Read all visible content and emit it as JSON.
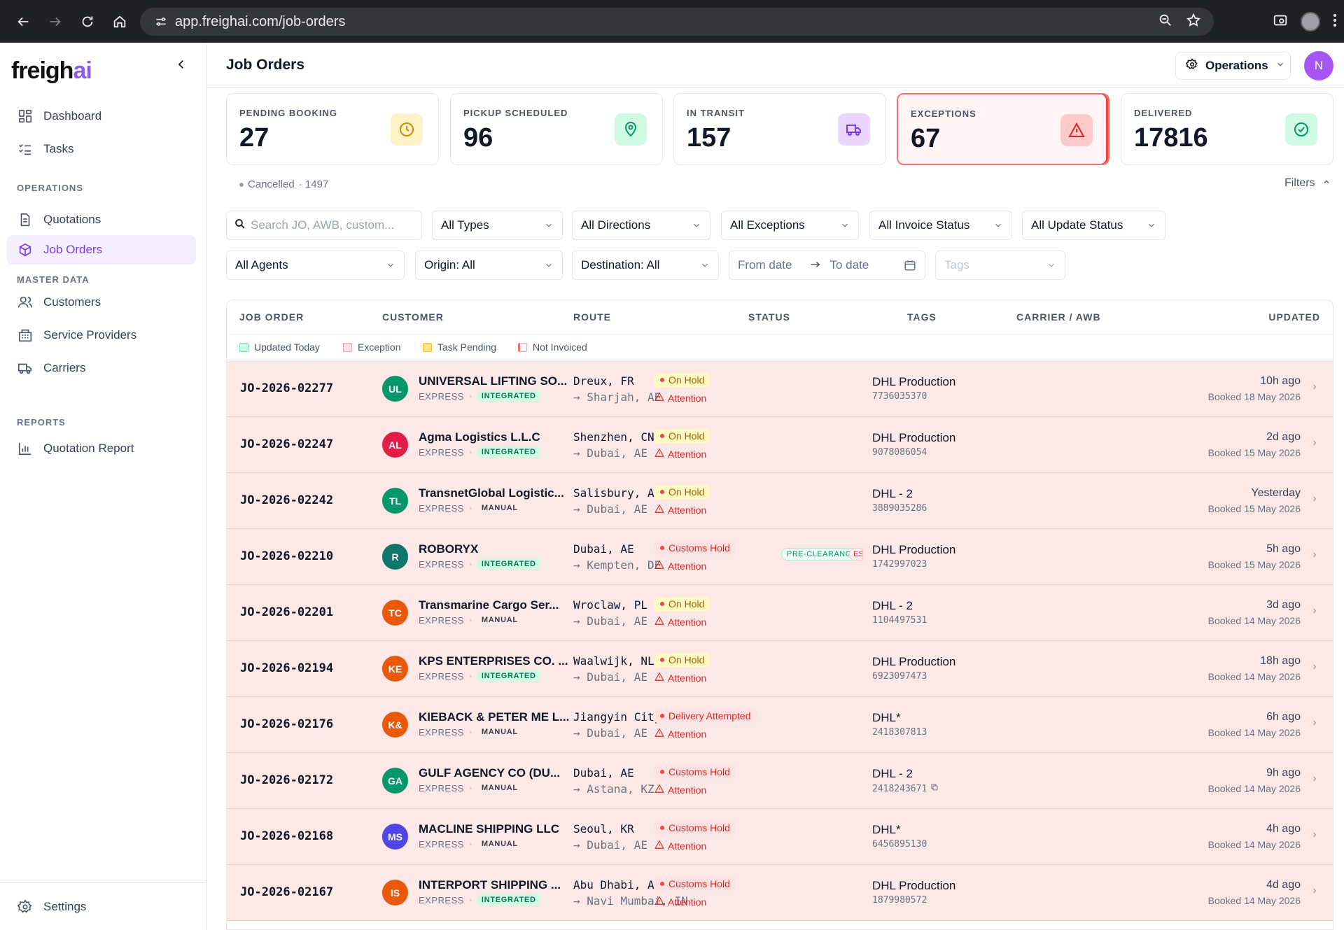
{
  "browser": {
    "url": "app.freighai.com/job-orders"
  },
  "brand": {
    "name_main": "freigh",
    "name_accent": "ai"
  },
  "sidebar": {
    "items_top": [
      {
        "label": "Dashboard",
        "icon": "dashboard-icon"
      },
      {
        "label": "Tasks",
        "icon": "tasks-icon"
      }
    ],
    "sections": [
      {
        "title": "OPERATIONS",
        "items": [
          {
            "label": "Quotations",
            "icon": "document-icon"
          },
          {
            "label": "Job Orders",
            "icon": "box-icon",
            "active": true
          }
        ]
      },
      {
        "title": "MASTER DATA",
        "items": [
          {
            "label": "Customers",
            "icon": "users-icon"
          },
          {
            "label": "Service Providers",
            "icon": "building-icon"
          },
          {
            "label": "Carriers",
            "icon": "truck-icon"
          }
        ]
      },
      {
        "title": "REPORTS",
        "items": [
          {
            "label": "Quotation Report",
            "icon": "bar-chart-icon"
          }
        ]
      }
    ],
    "settings_label": "Settings"
  },
  "header": {
    "title": "Job Orders",
    "workspace": "Operations",
    "user_initial": "N"
  },
  "stats": [
    {
      "label": "PENDING BOOKING",
      "value": "27",
      "color": "#eab308"
    },
    {
      "label": "PICKUP SCHEDULED",
      "value": "96",
      "color": "#10b981"
    },
    {
      "label": "IN TRANSIT",
      "value": "157",
      "color": "#8b5cf6"
    },
    {
      "label": "EXCEPTIONS",
      "value": "67",
      "color": "#ef4444"
    },
    {
      "label": "DELIVERED",
      "value": "17816",
      "color": "#10b981"
    }
  ],
  "cancelled": {
    "label": "Cancelled",
    "count": "· 1497"
  },
  "filters_toggle": "Filters",
  "filters": {
    "search_placeholder": "Search JO, AWB, custom...",
    "types": "All Types",
    "directions": "All Directions",
    "exceptions": "All Exceptions",
    "invoice": "All Invoice Status",
    "update": "All Update Status",
    "agents": "All Agents",
    "origin": "Origin: All",
    "destination": "Destination: All",
    "from_date": "From date",
    "to_date": "To date",
    "tags": "Tags"
  },
  "table": {
    "columns": [
      "JOB ORDER",
      "CUSTOMER",
      "ROUTE",
      "STATUS",
      "TAGS",
      "CARRIER / AWB",
      "UPDATED"
    ],
    "legend": [
      {
        "label": "Updated Today",
        "color": "#a7f3d0"
      },
      {
        "label": "Exception",
        "color": "#fecaca"
      },
      {
        "label": "Task Pending",
        "color": "#fcd34d"
      },
      {
        "label": "Not Invoiced",
        "color": "#fecaca"
      }
    ],
    "rows": [
      {
        "jo": "JO-2026-02277",
        "initials": "UL",
        "avatar_color": "#059669",
        "customer": "UNIVERSAL LIFTING SO...",
        "service": "EXPRESS",
        "mode": "INTEGRATED",
        "from": "Dreux, FR",
        "to": "→ Sharjah, AE",
        "status": "On Hold",
        "status_kind": "hold",
        "attention": "Attention",
        "tags": [],
        "carrier": "DHL Production",
        "awb": "7736035370",
        "ago": "10h ago",
        "booked": "Booked 18 May 2026"
      },
      {
        "jo": "JO-2026-02247",
        "initials": "AL",
        "avatar_color": "#e11d48",
        "customer": "Agma Logistics L.L.C",
        "service": "EXPRESS",
        "mode": "INTEGRATED",
        "from": "Shenzhen, CN",
        "to": "→ Dubai, AE",
        "status": "On Hold",
        "status_kind": "hold",
        "attention": "Attention",
        "tags": [],
        "carrier": "DHL Production",
        "awb": "9078086054",
        "ago": "2d ago",
        "booked": "Booked 15 May 2026"
      },
      {
        "jo": "JO-2026-02242",
        "initials": "TL",
        "avatar_color": "#059669",
        "customer": "TransnetGlobal Logistic...",
        "service": "EXPRESS",
        "mode": "MANUAL",
        "from": "Salisbury, AU",
        "to": "→ Dubai, AE",
        "status": "On Hold",
        "status_kind": "hold",
        "attention": "Attention",
        "tags": [],
        "carrier": "DHL - 2",
        "awb": "3889035286",
        "ago": "Yesterday",
        "booked": "Booked 15 May 2026"
      },
      {
        "jo": "JO-2026-02210",
        "initials": "R",
        "avatar_color": "#0f766e",
        "customer": "ROBORYX",
        "service": "EXPRESS",
        "mode": "INTEGRATED",
        "from": "Dubai, AE",
        "to": "→ Kempten, DE",
        "status": "Customs Hold",
        "status_kind": "red",
        "attention": "Attention",
        "tags": [
          "PRE-CLEARANCE",
          "ES"
        ],
        "carrier": "DHL Production",
        "awb": "1742997023",
        "ago": "5h ago",
        "booked": "Booked 15 May 2026"
      },
      {
        "jo": "JO-2026-02201",
        "initials": "TC",
        "avatar_color": "#ea580c",
        "customer": "Transmarine Cargo Ser...",
        "service": "EXPRESS",
        "mode": "MANUAL",
        "from": "Wroclaw, PL",
        "to": "→ Dubai, AE",
        "status": "On Hold",
        "status_kind": "hold",
        "attention": "Attention",
        "tags": [],
        "carrier": "DHL - 2",
        "awb": "1104497531",
        "ago": "3d ago",
        "booked": "Booked 14 May 2026"
      },
      {
        "jo": "JO-2026-02194",
        "initials": "KE",
        "avatar_color": "#ea580c",
        "customer": "KPS ENTERPRISES CO. ...",
        "service": "EXPRESS",
        "mode": "INTEGRATED",
        "from": "Waalwijk, NL",
        "to": "→ Dubai, AE",
        "status": "On Hold",
        "status_kind": "hold",
        "attention": "Attention",
        "tags": [],
        "carrier": "DHL Production",
        "awb": "6923097473",
        "ago": "18h ago",
        "booked": "Booked 14 May 2026"
      },
      {
        "jo": "JO-2026-02176",
        "initials": "K&",
        "avatar_color": "#ea580c",
        "customer": "KIEBACK & PETER ME L...",
        "service": "EXPRESS",
        "mode": "MANUAL",
        "from": "Jiangyin City, CN",
        "to": "→ Dubai, AE",
        "status": "Delivery Attempted",
        "status_kind": "red",
        "attention": "Attention",
        "tags": [],
        "carrier": "DHL*",
        "awb": "2418307813",
        "ago": "6h ago",
        "booked": "Booked 14 May 2026"
      },
      {
        "jo": "JO-2026-02172",
        "initials": "GA",
        "avatar_color": "#059669",
        "customer": "GULF AGENCY CO (DU...",
        "service": "EXPRESS",
        "mode": "MANUAL",
        "from": "Dubai, AE",
        "to": "→ Astana, KZ",
        "status": "Customs Hold",
        "status_kind": "red",
        "attention": "Attention",
        "tags": [],
        "carrier": "DHL - 2",
        "awb": "2418243671",
        "copy": true,
        "ago": "9h ago",
        "booked": "Booked 14 May 2026"
      },
      {
        "jo": "JO-2026-02168",
        "initials": "MS",
        "avatar_color": "#4f46e5",
        "customer": "MACLINE SHIPPING LLC",
        "service": "EXPRESS",
        "mode": "MANUAL",
        "from": "Seoul, KR",
        "to": "→ Dubai, AE",
        "status": "Customs Hold",
        "status_kind": "red",
        "attention": "Attention",
        "tags": [],
        "carrier": "DHL*",
        "awb": "6456895130",
        "ago": "4h ago",
        "booked": "Booked 14 May 2026"
      },
      {
        "jo": "JO-2026-02167",
        "initials": "IS",
        "avatar_color": "#ea580c",
        "customer": "INTERPORT SHIPPING ...",
        "service": "EXPRESS",
        "mode": "INTEGRATED",
        "from": "Abu Dhabi, AE",
        "to": "→ Navi Mumbai, IN",
        "status": "Customs Hold",
        "status_kind": "red",
        "attention": "Attention",
        "tags": [],
        "carrier": "DHL Production",
        "awb": "1879980572",
        "ago": "4d ago",
        "booked": "Booked 14 May 2026"
      }
    ]
  }
}
